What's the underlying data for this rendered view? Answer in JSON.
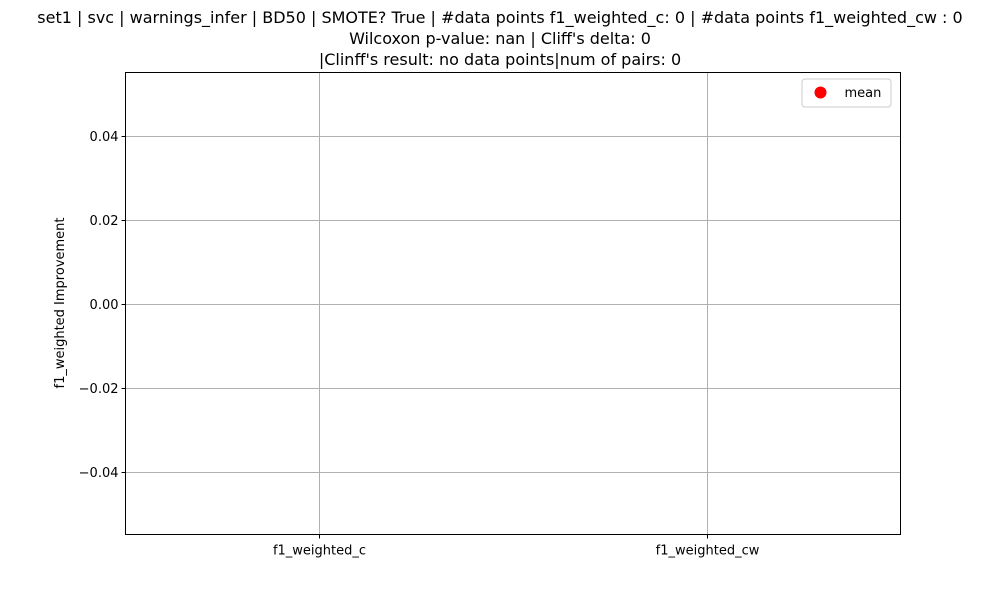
{
  "title_lines": [
    "set1 | svc | warnings_infer | BD50 | SMOTE? True | #data points f1_weighted_c: 0 | #data points f1_weighted_cw : 0",
    "Wilcoxon p-value: nan | Cliff's delta: 0",
    "|Clinff's result: no data points|num of pairs: 0"
  ],
  "colors": {
    "mean_marker": "#ff0000",
    "grid": "#b0b0b0",
    "axes": "#000000"
  },
  "chart_data": {
    "type": "scatter",
    "categories": [
      "f1_weighted_c",
      "f1_weighted_cw"
    ],
    "series": [
      {
        "name": "mean",
        "values": []
      }
    ],
    "ylabel": "f1_weighted Improvement",
    "xlabel": "",
    "ylim": [
      -0.055,
      0.055
    ],
    "yticks": [
      -0.04,
      -0.02,
      0.0,
      0.02,
      0.04
    ],
    "ytick_labels": [
      "−0.04",
      "−0.02",
      "0.00",
      "0.02",
      "0.04"
    ],
    "grid": true,
    "legend_position": "top-right",
    "legend_entries": [
      {
        "label": "mean",
        "marker": "circle"
      }
    ]
  }
}
